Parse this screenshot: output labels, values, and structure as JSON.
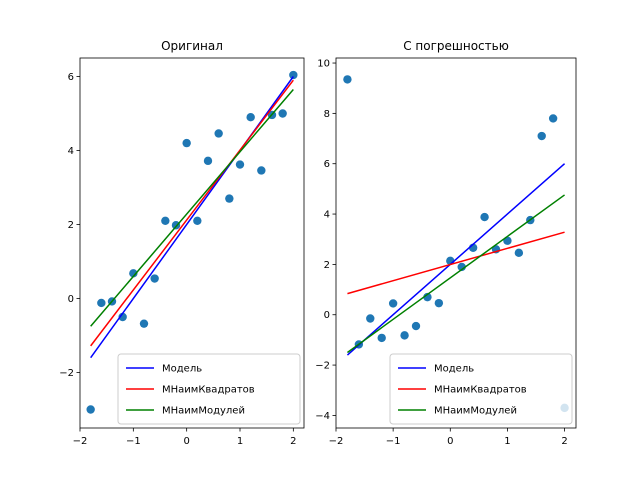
{
  "chart_data": [
    {
      "type": "scatter",
      "title": "Оригинал",
      "xlabel": "",
      "ylabel": "",
      "xlim": [
        -2.0,
        2.2
      ],
      "ylim": [
        -3.5,
        6.5
      ],
      "xticks": [
        -2,
        -1,
        0,
        1,
        2
      ],
      "yticks": [
        -2,
        0,
        2,
        4,
        6
      ],
      "grid": false,
      "legend_position": "lower-right",
      "points": {
        "color": "#1f77b4",
        "x": [
          -1.8,
          -1.6,
          -1.4,
          -1.2,
          -1.0,
          -0.8,
          -0.6,
          -0.4,
          -0.2,
          0.0,
          0.2,
          0.4,
          0.6,
          0.8,
          1.0,
          1.2,
          1.4,
          1.6,
          1.8,
          2.0
        ],
        "y": [
          -3.0,
          -0.12,
          -0.08,
          -0.5,
          0.68,
          -0.68,
          0.54,
          2.1,
          1.98,
          4.2,
          2.1,
          3.72,
          4.46,
          2.7,
          3.62,
          4.9,
          3.46,
          4.96,
          5.0,
          6.04
        ]
      },
      "series": [
        {
          "name": "Модель",
          "color": "#0000ff",
          "x": [
            -1.8,
            2.0
          ],
          "y": [
            -1.6,
            6.0
          ]
        },
        {
          "name": "МНаимКвадратов",
          "color": "#ff0000",
          "x": [
            -1.8,
            2.0
          ],
          "y": [
            -1.28,
            5.9
          ]
        },
        {
          "name": "МНаимМодулей",
          "color": "#008000",
          "x": [
            -1.8,
            2.0
          ],
          "y": [
            -0.75,
            5.65
          ]
        }
      ]
    },
    {
      "type": "scatter",
      "title": "С погрешностью",
      "xlabel": "",
      "ylabel": "",
      "xlim": [
        -2.0,
        2.2
      ],
      "ylim": [
        -4.5,
        10.2
      ],
      "xticks": [
        -2,
        -1,
        0,
        1,
        2
      ],
      "yticks": [
        -4,
        -2,
        0,
        2,
        4,
        6,
        8,
        10
      ],
      "grid": false,
      "legend_position": "lower-right",
      "points": {
        "color": "#1f77b4",
        "x": [
          -1.8,
          -1.6,
          -1.4,
          -1.2,
          -1.0,
          -0.8,
          -0.6,
          -0.4,
          -0.2,
          0.0,
          0.2,
          0.4,
          0.6,
          0.8,
          1.0,
          1.2,
          1.4,
          1.6,
          1.8,
          2.0
        ],
        "y": [
          9.35,
          -1.18,
          -0.15,
          -0.92,
          0.45,
          -0.82,
          -0.45,
          0.7,
          0.46,
          2.14,
          1.9,
          2.66,
          3.88,
          2.6,
          2.94,
          2.46,
          3.76,
          7.1,
          7.8,
          -3.7
        ]
      },
      "series": [
        {
          "name": "Модель",
          "color": "#0000ff",
          "x": [
            -1.8,
            2.0
          ],
          "y": [
            -1.6,
            6.0
          ]
        },
        {
          "name": "МНаимКвадратов",
          "color": "#ff0000",
          "x": [
            -1.8,
            2.0
          ],
          "y": [
            0.84,
            3.28
          ]
        },
        {
          "name": "МНаимМодулей",
          "color": "#008000",
          "x": [
            -1.8,
            2.0
          ],
          "y": [
            -1.5,
            4.76
          ]
        }
      ]
    }
  ]
}
